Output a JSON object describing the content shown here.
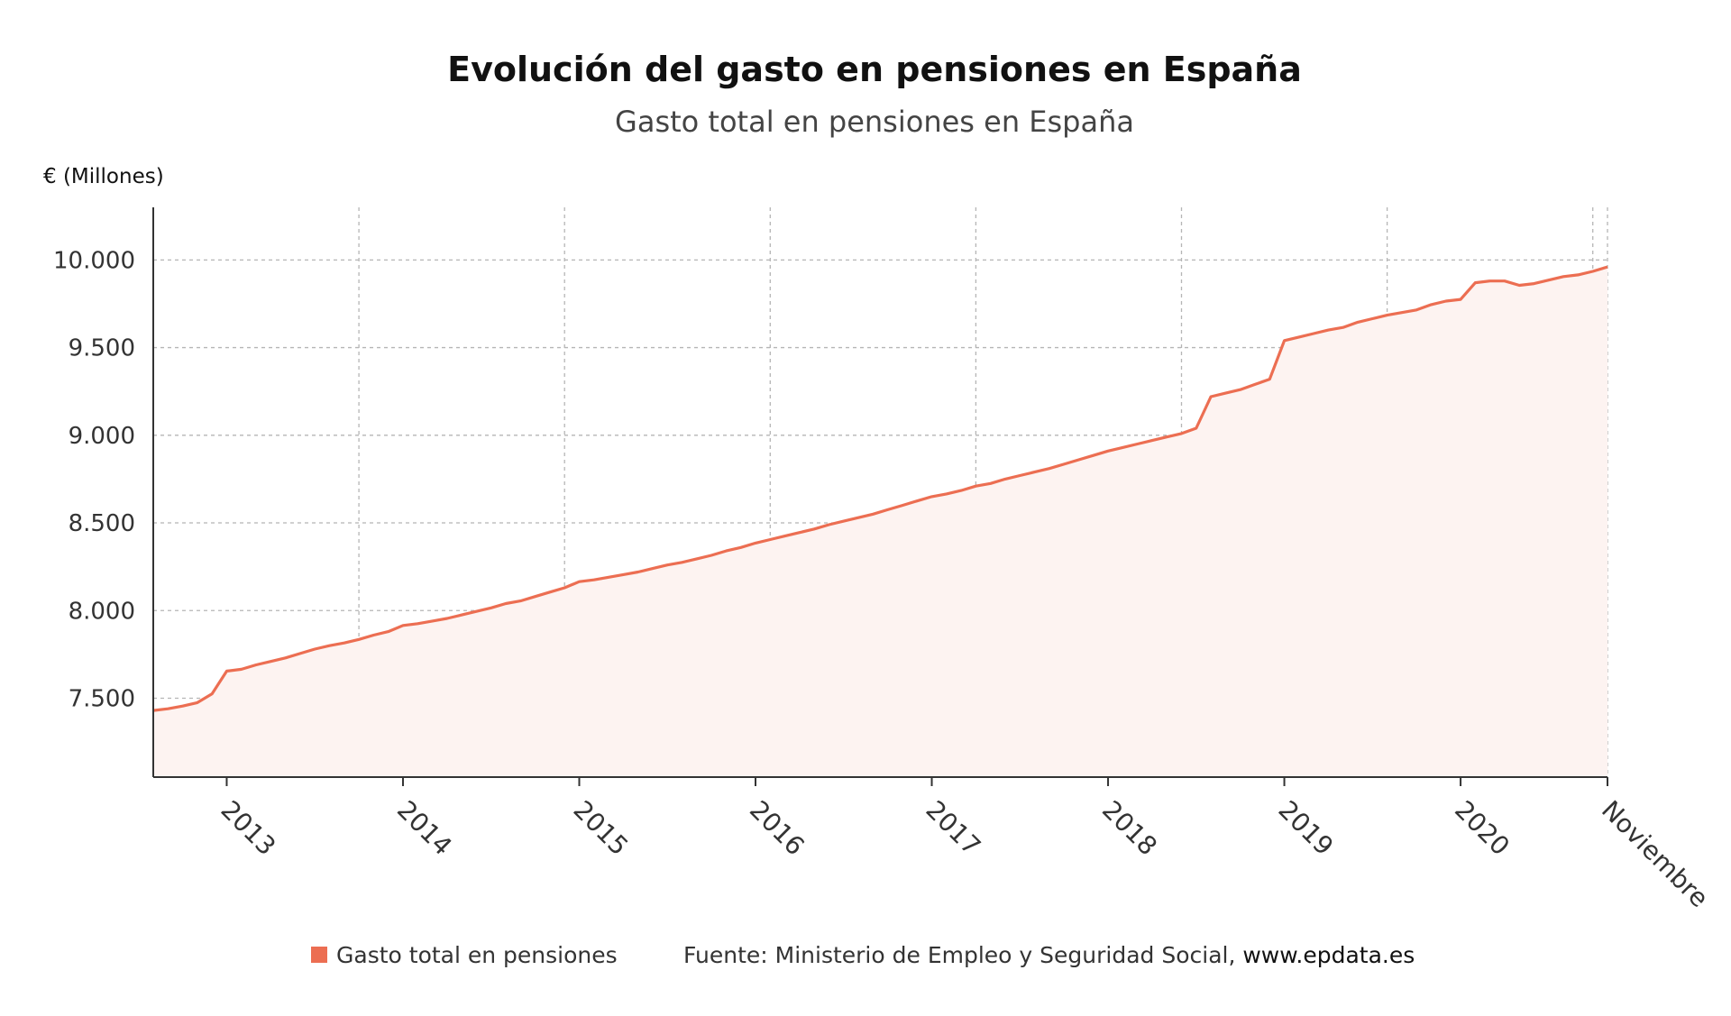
{
  "chart_data": {
    "type": "area",
    "title": "Evolución del gasto en pensiones en España",
    "subtitle": "Gasto total en pensiones en España",
    "y_unit": "€ (Millones)",
    "ylim": [
      7050,
      10300
    ],
    "y_ticks": [
      7500,
      8000,
      8500,
      9000,
      9500,
      10000
    ],
    "y_tick_labels": [
      "7.500",
      "8.000",
      "8.500",
      "9.000",
      "9.500",
      "10.000"
    ],
    "x_start": "2012-08",
    "x_end": "2020-11",
    "x_labels": [
      {
        "date": "2013-01",
        "label": "2013"
      },
      {
        "date": "2014-01",
        "label": "2014"
      },
      {
        "date": "2015-01",
        "label": "2015"
      },
      {
        "date": "2016-01",
        "label": "2016"
      },
      {
        "date": "2017-01",
        "label": "2017"
      },
      {
        "date": "2018-01",
        "label": "2018"
      },
      {
        "date": "2019-01",
        "label": "2019"
      },
      {
        "date": "2020-01",
        "label": "2020"
      },
      {
        "date": "2020-11",
        "label": "Noviembre"
      }
    ],
    "grid": true,
    "legend_position": "bottom",
    "series": [
      {
        "name": "Gasto total en pensiones",
        "color": "#ec6e52",
        "fill": "#fdf3f1",
        "points": [
          [
            "2012-08",
            7430
          ],
          [
            "2012-09",
            7440
          ],
          [
            "2012-10",
            7455
          ],
          [
            "2012-11",
            7475
          ],
          [
            "2012-12",
            7525
          ],
          [
            "2013-01",
            7655
          ],
          [
            "2013-02",
            7665
          ],
          [
            "2013-03",
            7690
          ],
          [
            "2013-04",
            7710
          ],
          [
            "2013-05",
            7730
          ],
          [
            "2013-06",
            7755
          ],
          [
            "2013-07",
            7780
          ],
          [
            "2013-08",
            7800
          ],
          [
            "2013-09",
            7815
          ],
          [
            "2013-10",
            7835
          ],
          [
            "2013-11",
            7860
          ],
          [
            "2013-12",
            7880
          ],
          [
            "2014-01",
            7915
          ],
          [
            "2014-02",
            7925
          ],
          [
            "2014-03",
            7940
          ],
          [
            "2014-04",
            7955
          ],
          [
            "2014-05",
            7975
          ],
          [
            "2014-06",
            7995
          ],
          [
            "2014-07",
            8015
          ],
          [
            "2014-08",
            8040
          ],
          [
            "2014-09",
            8055
          ],
          [
            "2014-10",
            8080
          ],
          [
            "2014-11",
            8105
          ],
          [
            "2014-12",
            8130
          ],
          [
            "2015-01",
            8165
          ],
          [
            "2015-02",
            8175
          ],
          [
            "2015-03",
            8190
          ],
          [
            "2015-04",
            8205
          ],
          [
            "2015-05",
            8220
          ],
          [
            "2015-06",
            8240
          ],
          [
            "2015-07",
            8260
          ],
          [
            "2015-08",
            8275
          ],
          [
            "2015-09",
            8295
          ],
          [
            "2015-10",
            8315
          ],
          [
            "2015-11",
            8340
          ],
          [
            "2015-12",
            8360
          ],
          [
            "2016-01",
            8385
          ],
          [
            "2016-02",
            8405
          ],
          [
            "2016-03",
            8425
          ],
          [
            "2016-04",
            8445
          ],
          [
            "2016-05",
            8465
          ],
          [
            "2016-06",
            8490
          ],
          [
            "2016-07",
            8510
          ],
          [
            "2016-08",
            8530
          ],
          [
            "2016-09",
            8550
          ],
          [
            "2016-10",
            8575
          ],
          [
            "2016-11",
            8600
          ],
          [
            "2016-12",
            8625
          ],
          [
            "2017-01",
            8650
          ],
          [
            "2017-02",
            8665
          ],
          [
            "2017-03",
            8685
          ],
          [
            "2017-04",
            8710
          ],
          [
            "2017-05",
            8725
          ],
          [
            "2017-06",
            8750
          ],
          [
            "2017-07",
            8770
          ],
          [
            "2017-08",
            8790
          ],
          [
            "2017-09",
            8810
          ],
          [
            "2017-10",
            8835
          ],
          [
            "2017-11",
            8860
          ],
          [
            "2017-12",
            8885
          ],
          [
            "2018-01",
            8910
          ],
          [
            "2018-02",
            8930
          ],
          [
            "2018-03",
            8950
          ],
          [
            "2018-04",
            8970
          ],
          [
            "2018-05",
            8990
          ],
          [
            "2018-06",
            9010
          ],
          [
            "2018-07",
            9040
          ],
          [
            "2018-08",
            9220
          ],
          [
            "2018-09",
            9240
          ],
          [
            "2018-10",
            9260
          ],
          [
            "2018-11",
            9290
          ],
          [
            "2018-12",
            9320
          ],
          [
            "2019-01",
            9540
          ],
          [
            "2019-02",
            9560
          ],
          [
            "2019-03",
            9580
          ],
          [
            "2019-04",
            9600
          ],
          [
            "2019-05",
            9615
          ],
          [
            "2019-06",
            9645
          ],
          [
            "2019-07",
            9665
          ],
          [
            "2019-08",
            9685
          ],
          [
            "2019-09",
            9700
          ],
          [
            "2019-10",
            9715
          ],
          [
            "2019-11",
            9745
          ],
          [
            "2019-12",
            9765
          ],
          [
            "2020-01",
            9775
          ],
          [
            "2020-02",
            9870
          ],
          [
            "2020-03",
            9880
          ],
          [
            "2020-04",
            9880
          ],
          [
            "2020-05",
            9855
          ],
          [
            "2020-06",
            9865
          ],
          [
            "2020-07",
            9885
          ],
          [
            "2020-08",
            9905
          ],
          [
            "2020-09",
            9915
          ],
          [
            "2020-10",
            9935
          ],
          [
            "2020-11",
            9960
          ]
        ]
      }
    ]
  },
  "legend": {
    "label": "Gasto total en pensiones",
    "color": "#ec6e52"
  },
  "source": {
    "label": "Fuente: Ministerio de Empleo y Seguridad Social, ",
    "link": "www.epdata.es"
  }
}
